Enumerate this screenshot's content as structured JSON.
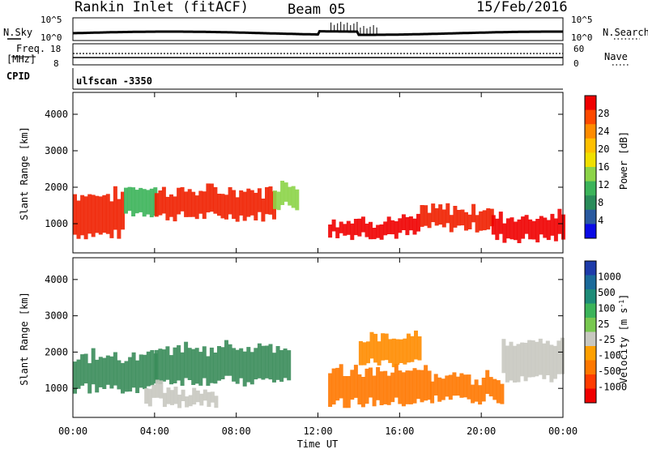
{
  "header": {
    "station": "Rankin Inlet (fitACF)",
    "beam": "Beam 05",
    "date": "15/Feb/2016"
  },
  "top_panels": {
    "nsky_label": "N.Sky",
    "nsky_ticks": [
      "10^5",
      "10^0"
    ],
    "nsearch_label": "N.Search",
    "nsearch_ticks": [
      "10^5",
      "10^0"
    ],
    "freq_label_1": "Freq.",
    "freq_label_2": "[MHz]",
    "freq_ticks": [
      "18",
      "8"
    ],
    "nave_label": "Nave",
    "nave_ticks": [
      "60",
      "0"
    ],
    "cpid_label": "CPID",
    "cpid_value": "ulfscan -3350"
  },
  "chart_data": [
    {
      "type": "heatmap",
      "name": "power-panel",
      "ylabel": "Slant Range [km]",
      "ylim": [
        200,
        4600
      ],
      "yticks": [
        "4000",
        "3000",
        "2000",
        "1000"
      ],
      "xlim": [
        0,
        24
      ],
      "colorbar": {
        "label": "Power [dB]",
        "ticks": [
          "28",
          "24",
          "20",
          "16",
          "12",
          "8",
          "4"
        ],
        "colors": [
          "#f00000",
          "#ff4a00",
          "#ff8c00",
          "#ffc000",
          "#f0e000",
          "#8cd448",
          "#3cb45a",
          "#2a8c5a",
          "#2a5aa0",
          "#0a0ae6"
        ]
      },
      "bands": [
        {
          "t0": 0.0,
          "t1": 2.5,
          "r0": 700,
          "r1": 1800,
          "c": "#f02000"
        },
        {
          "t0": 2.5,
          "t1": 4.0,
          "r0": 1300,
          "r1": 2000,
          "c": "#3cb45a"
        },
        {
          "t0": 4.0,
          "t1": 9.8,
          "r0": 1200,
          "r1": 1900,
          "c": "#f02000"
        },
        {
          "t0": 9.8,
          "t1": 11.0,
          "r0": 1500,
          "r1": 2100,
          "c": "#8cd448"
        },
        {
          "t0": 12.5,
          "t1": 17.0,
          "r0": 700,
          "r1": 1100,
          "c": "#f00000"
        },
        {
          "t0": 17.0,
          "t1": 20.5,
          "r0": 900,
          "r1": 1400,
          "c": "#f02000"
        },
        {
          "t0": 20.5,
          "t1": 24.0,
          "r0": 600,
          "r1": 1200,
          "c": "#f00000"
        }
      ]
    },
    {
      "type": "heatmap",
      "name": "velocity-panel",
      "ylabel": "Slant Range [km]",
      "xlabel": "Time UT",
      "ylim": [
        200,
        4600
      ],
      "yticks": [
        "4000",
        "3000",
        "2000",
        "1000"
      ],
      "xlim": [
        0,
        24
      ],
      "xticks": [
        "00:00",
        "04:00",
        "08:00",
        "12:00",
        "16:00",
        "20:00",
        "00:00"
      ],
      "colorbar": {
        "label": "Velocity [m s",
        "label_sup": "-1",
        "label_end": "]",
        "ticks": [
          "1000",
          "500",
          "100",
          "25",
          "-25",
          "-100",
          "-500",
          "-1000"
        ],
        "colors": [
          "#1e3caa",
          "#1a6a9a",
          "#1e8c78",
          "#3cb45a",
          "#78c850",
          "#c8c8c0",
          "#ffa000",
          "#ff7800",
          "#ff3c00",
          "#f00000"
        ]
      },
      "bands": [
        {
          "t0": 0.0,
          "t1": 4.0,
          "r0": 1000,
          "r1": 1900,
          "c": "#3a8c5a"
        },
        {
          "t0": 4.0,
          "t1": 10.5,
          "r0": 1200,
          "r1": 2100,
          "c": "#3a8c5a"
        },
        {
          "t0": 3.5,
          "t1": 7.0,
          "r0": 600,
          "r1": 1000,
          "c": "#c8c8c0"
        },
        {
          "t0": 12.5,
          "t1": 17.5,
          "r0": 600,
          "r1": 1500,
          "c": "#ff7800"
        },
        {
          "t0": 14.0,
          "t1": 17.0,
          "r0": 1700,
          "r1": 2400,
          "c": "#ff8c00"
        },
        {
          "t0": 17.5,
          "t1": 21.0,
          "r0": 700,
          "r1": 1300,
          "c": "#ff7800"
        },
        {
          "t0": 21.0,
          "t1": 24.0,
          "r0": 1300,
          "r1": 2300,
          "c": "#c8c8c0"
        }
      ]
    }
  ]
}
